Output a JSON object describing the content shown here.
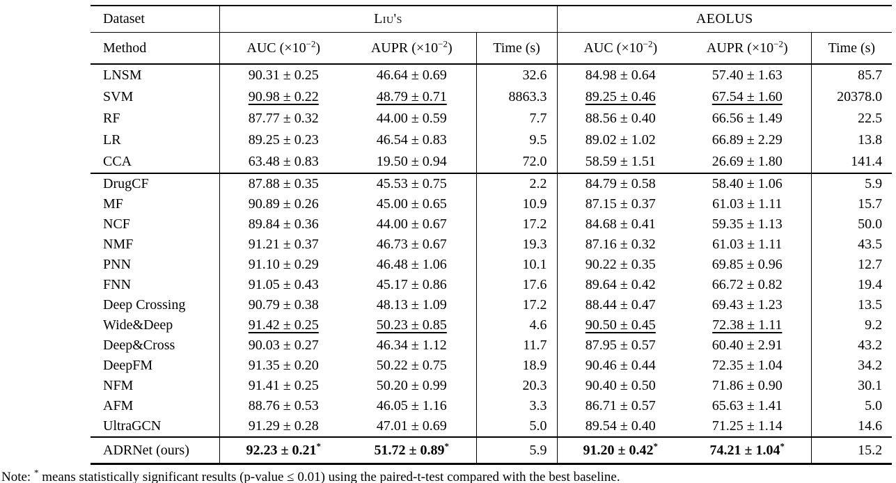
{
  "table": {
    "datasets_row": {
      "dataset_label": "Dataset",
      "groups": [
        {
          "label": "Liu's"
        },
        {
          "label": "AEOLUS"
        }
      ]
    },
    "columns_row": {
      "method_label": "Method",
      "metrics": [
        {
          "base": "AUC (×10",
          "exp": "−2",
          "close": ")"
        },
        {
          "base": "AUPR (×10",
          "exp": "−2",
          "close": ")"
        },
        {
          "base": "Time (s)"
        },
        {
          "base": "AUC (×10",
          "exp": "−2",
          "close": ")"
        },
        {
          "base": "AUPR (×10",
          "exp": "−2",
          "close": ")"
        },
        {
          "base": "Time (s)"
        }
      ]
    },
    "blocks": [
      {
        "rows": [
          {
            "method": "LNSM",
            "cells": [
              {
                "v": "90.31 ± 0.25"
              },
              {
                "v": "46.64 ± 0.69"
              },
              {
                "v": "32.6"
              },
              {
                "v": "84.98 ± 0.64"
              },
              {
                "v": "57.40 ± 1.63"
              },
              {
                "v": "85.7"
              }
            ]
          },
          {
            "method": "SVM",
            "cells": [
              {
                "v": "90.98 ± 0.22",
                "u": true
              },
              {
                "v": "48.79 ± 0.71",
                "u": true
              },
              {
                "v": "8863.3"
              },
              {
                "v": "89.25 ± 0.46",
                "u": true
              },
              {
                "v": "67.54 ± 1.60",
                "u": true
              },
              {
                "v": "20378.0"
              }
            ]
          },
          {
            "method": "RF",
            "cells": [
              {
                "v": "87.77 ± 0.32"
              },
              {
                "v": "44.00 ± 0.59"
              },
              {
                "v": "7.7"
              },
              {
                "v": "88.56 ± 0.40"
              },
              {
                "v": "66.56 ± 1.49"
              },
              {
                "v": "22.5"
              }
            ]
          },
          {
            "method": "LR",
            "cells": [
              {
                "v": "89.25 ± 0.23"
              },
              {
                "v": "46.54 ± 0.83"
              },
              {
                "v": "9.5"
              },
              {
                "v": "89.02 ± 1.02"
              },
              {
                "v": "66.89 ± 2.29"
              },
              {
                "v": "13.8"
              }
            ]
          },
          {
            "method": "CCA",
            "cells": [
              {
                "v": "63.48 ± 0.83"
              },
              {
                "v": "19.50 ± 0.94"
              },
              {
                "v": "72.0"
              },
              {
                "v": "58.59 ± 1.51"
              },
              {
                "v": "26.69 ± 1.80"
              },
              {
                "v": "141.4"
              }
            ]
          }
        ]
      },
      {
        "rows": [
          {
            "method": "DrugCF",
            "cells": [
              {
                "v": "87.88 ± 0.35"
              },
              {
                "v": "45.53 ± 0.75"
              },
              {
                "v": "2.2"
              },
              {
                "v": "84.79 ± 0.58"
              },
              {
                "v": "58.40 ± 1.06"
              },
              {
                "v": "5.9"
              }
            ]
          },
          {
            "method": "MF",
            "cells": [
              {
                "v": "90.89 ± 0.26"
              },
              {
                "v": "45.00 ± 0.65"
              },
              {
                "v": "10.9"
              },
              {
                "v": "87.15 ± 0.37"
              },
              {
                "v": "61.03 ± 1.11"
              },
              {
                "v": "15.7"
              }
            ]
          },
          {
            "method": "NCF",
            "cells": [
              {
                "v": "89.84 ± 0.36"
              },
              {
                "v": "44.00 ± 0.67"
              },
              {
                "v": "17.2"
              },
              {
                "v": "84.68 ± 0.41"
              },
              {
                "v": "59.35 ± 1.13"
              },
              {
                "v": "50.0"
              }
            ]
          },
          {
            "method": "NMF",
            "cells": [
              {
                "v": "91.21 ± 0.37"
              },
              {
                "v": "46.73 ± 0.67"
              },
              {
                "v": "19.3"
              },
              {
                "v": "87.16 ± 0.32"
              },
              {
                "v": "61.03 ± 1.11"
              },
              {
                "v": "43.5"
              }
            ]
          },
          {
            "method": "PNN",
            "cells": [
              {
                "v": "91.10 ± 0.29"
              },
              {
                "v": "46.48 ± 1.06"
              },
              {
                "v": "10.1"
              },
              {
                "v": "90.22 ± 0.35"
              },
              {
                "v": "69.85 ± 0.96"
              },
              {
                "v": "12.7"
              }
            ]
          },
          {
            "method": "FNN",
            "cells": [
              {
                "v": "91.05 ± 0.43"
              },
              {
                "v": "45.17 ± 0.86"
              },
              {
                "v": "17.6"
              },
              {
                "v": "89.64 ± 0.42"
              },
              {
                "v": "66.72 ± 0.82"
              },
              {
                "v": "19.4"
              }
            ]
          },
          {
            "method": "Deep Crossing",
            "cells": [
              {
                "v": "90.79 ± 0.38"
              },
              {
                "v": "48.13 ± 1.09"
              },
              {
                "v": "17.2"
              },
              {
                "v": "88.44 ± 0.47"
              },
              {
                "v": "69.43 ± 1.23"
              },
              {
                "v": "13.5"
              }
            ]
          },
          {
            "method": "Wide&Deep",
            "cells": [
              {
                "v": "91.42 ± 0.25",
                "u": true
              },
              {
                "v": "50.23 ± 0.85",
                "u": true
              },
              {
                "v": "4.6"
              },
              {
                "v": "90.50 ± 0.45",
                "u": true
              },
              {
                "v": "72.38 ± 1.11",
                "u": true
              },
              {
                "v": "9.2"
              }
            ]
          },
          {
            "method": "Deep&Cross",
            "cells": [
              {
                "v": "90.03 ± 0.27"
              },
              {
                "v": "46.34 ± 1.12"
              },
              {
                "v": "11.7"
              },
              {
                "v": "87.95 ± 0.57"
              },
              {
                "v": "60.40 ± 2.91"
              },
              {
                "v": "43.2"
              }
            ]
          },
          {
            "method": "DeepFM",
            "cells": [
              {
                "v": "91.35 ± 0.20"
              },
              {
                "v": "50.22 ± 0.75"
              },
              {
                "v": "18.9"
              },
              {
                "v": "90.46 ± 0.44"
              },
              {
                "v": "72.35 ± 1.04"
              },
              {
                "v": "34.2"
              }
            ]
          },
          {
            "method": "NFM",
            "cells": [
              {
                "v": "91.41 ± 0.25"
              },
              {
                "v": "50.20 ± 0.99"
              },
              {
                "v": "20.3"
              },
              {
                "v": "90.40 ± 0.50"
              },
              {
                "v": "71.86 ± 0.90"
              },
              {
                "v": "30.1"
              }
            ]
          },
          {
            "method": "AFM",
            "cells": [
              {
                "v": "88.76 ± 0.53"
              },
              {
                "v": "46.05 ± 1.16"
              },
              {
                "v": "3.3"
              },
              {
                "v": "86.71 ± 0.57"
              },
              {
                "v": "65.63 ± 1.41"
              },
              {
                "v": "5.0"
              }
            ]
          },
          {
            "method": "UltraGCN",
            "cells": [
              {
                "v": "91.29 ± 0.28"
              },
              {
                "v": "47.01 ± 0.69"
              },
              {
                "v": "5.0"
              },
              {
                "v": "89.54 ± 0.40"
              },
              {
                "v": "71.25 ± 1.14"
              },
              {
                "v": "14.6"
              }
            ]
          }
        ]
      },
      {
        "rows": [
          {
            "method": "ADRNet (ours)",
            "cells": [
              {
                "v": "92.23 ± 0.21",
                "b": true,
                "s": true
              },
              {
                "v": "51.72 ± 0.89",
                "b": true,
                "s": true
              },
              {
                "v": "5.9"
              },
              {
                "v": "91.20 ± 0.42",
                "b": true,
                "s": true
              },
              {
                "v": "74.21 ± 1.04",
                "b": true,
                "s": true
              },
              {
                "v": "15.2"
              }
            ]
          }
        ]
      }
    ]
  },
  "note": {
    "prefix": "Note: ",
    "star": "*",
    "text": " means statistically significant results (p-value ≤ 0.01) using the paired-t-test compared with the best baseline."
  }
}
